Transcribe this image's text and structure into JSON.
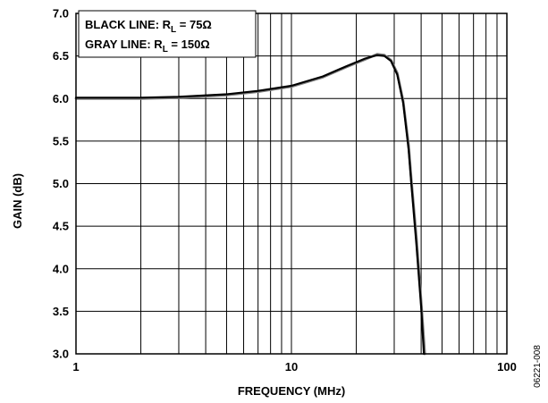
{
  "chart_data": {
    "type": "line",
    "xlabel": "FREQUENCY (MHz)",
    "ylabel": "GAIN (dB)",
    "xscale": "log",
    "xlim": [
      1,
      100
    ],
    "ylim": [
      3.0,
      7.0
    ],
    "grid": true,
    "x_ticks": [
      "1",
      "10",
      "100"
    ],
    "y_ticks": [
      "3.0",
      "3.5",
      "4.0",
      "4.5",
      "5.0",
      "5.5",
      "6.0",
      "6.5",
      "7.0"
    ],
    "legend_position": "top-left",
    "legend": [
      {
        "prefix": "BLACK LINE: R",
        "sub": "L",
        "suffix": " = 75Ω"
      },
      {
        "prefix": "GRAY LINE: R",
        "sub": "L",
        "suffix": " = 150Ω"
      }
    ],
    "series": [
      {
        "color": "#000000",
        "x": [
          1,
          2,
          3,
          5,
          7,
          10,
          14,
          18,
          22,
          25,
          27,
          29,
          31,
          33,
          35,
          36,
          38,
          40,
          41.2
        ],
        "y": [
          6.01,
          6.01,
          6.02,
          6.05,
          6.09,
          6.15,
          6.26,
          6.38,
          6.47,
          6.51,
          6.5,
          6.44,
          6.28,
          5.95,
          5.4,
          5.0,
          4.3,
          3.55,
          3.0
        ]
      },
      {
        "color": "#808080",
        "x": [
          1,
          2,
          3,
          5,
          7,
          10,
          14,
          18,
          22,
          25,
          27,
          29,
          31,
          33,
          35,
          36,
          38,
          40,
          41.6
        ],
        "y": [
          6.0,
          6.0,
          6.01,
          6.04,
          6.08,
          6.14,
          6.25,
          6.37,
          6.46,
          6.52,
          6.51,
          6.45,
          6.3,
          5.97,
          5.45,
          5.05,
          4.38,
          3.62,
          3.0
        ]
      }
    ]
  },
  "figure_id": "06221-008"
}
